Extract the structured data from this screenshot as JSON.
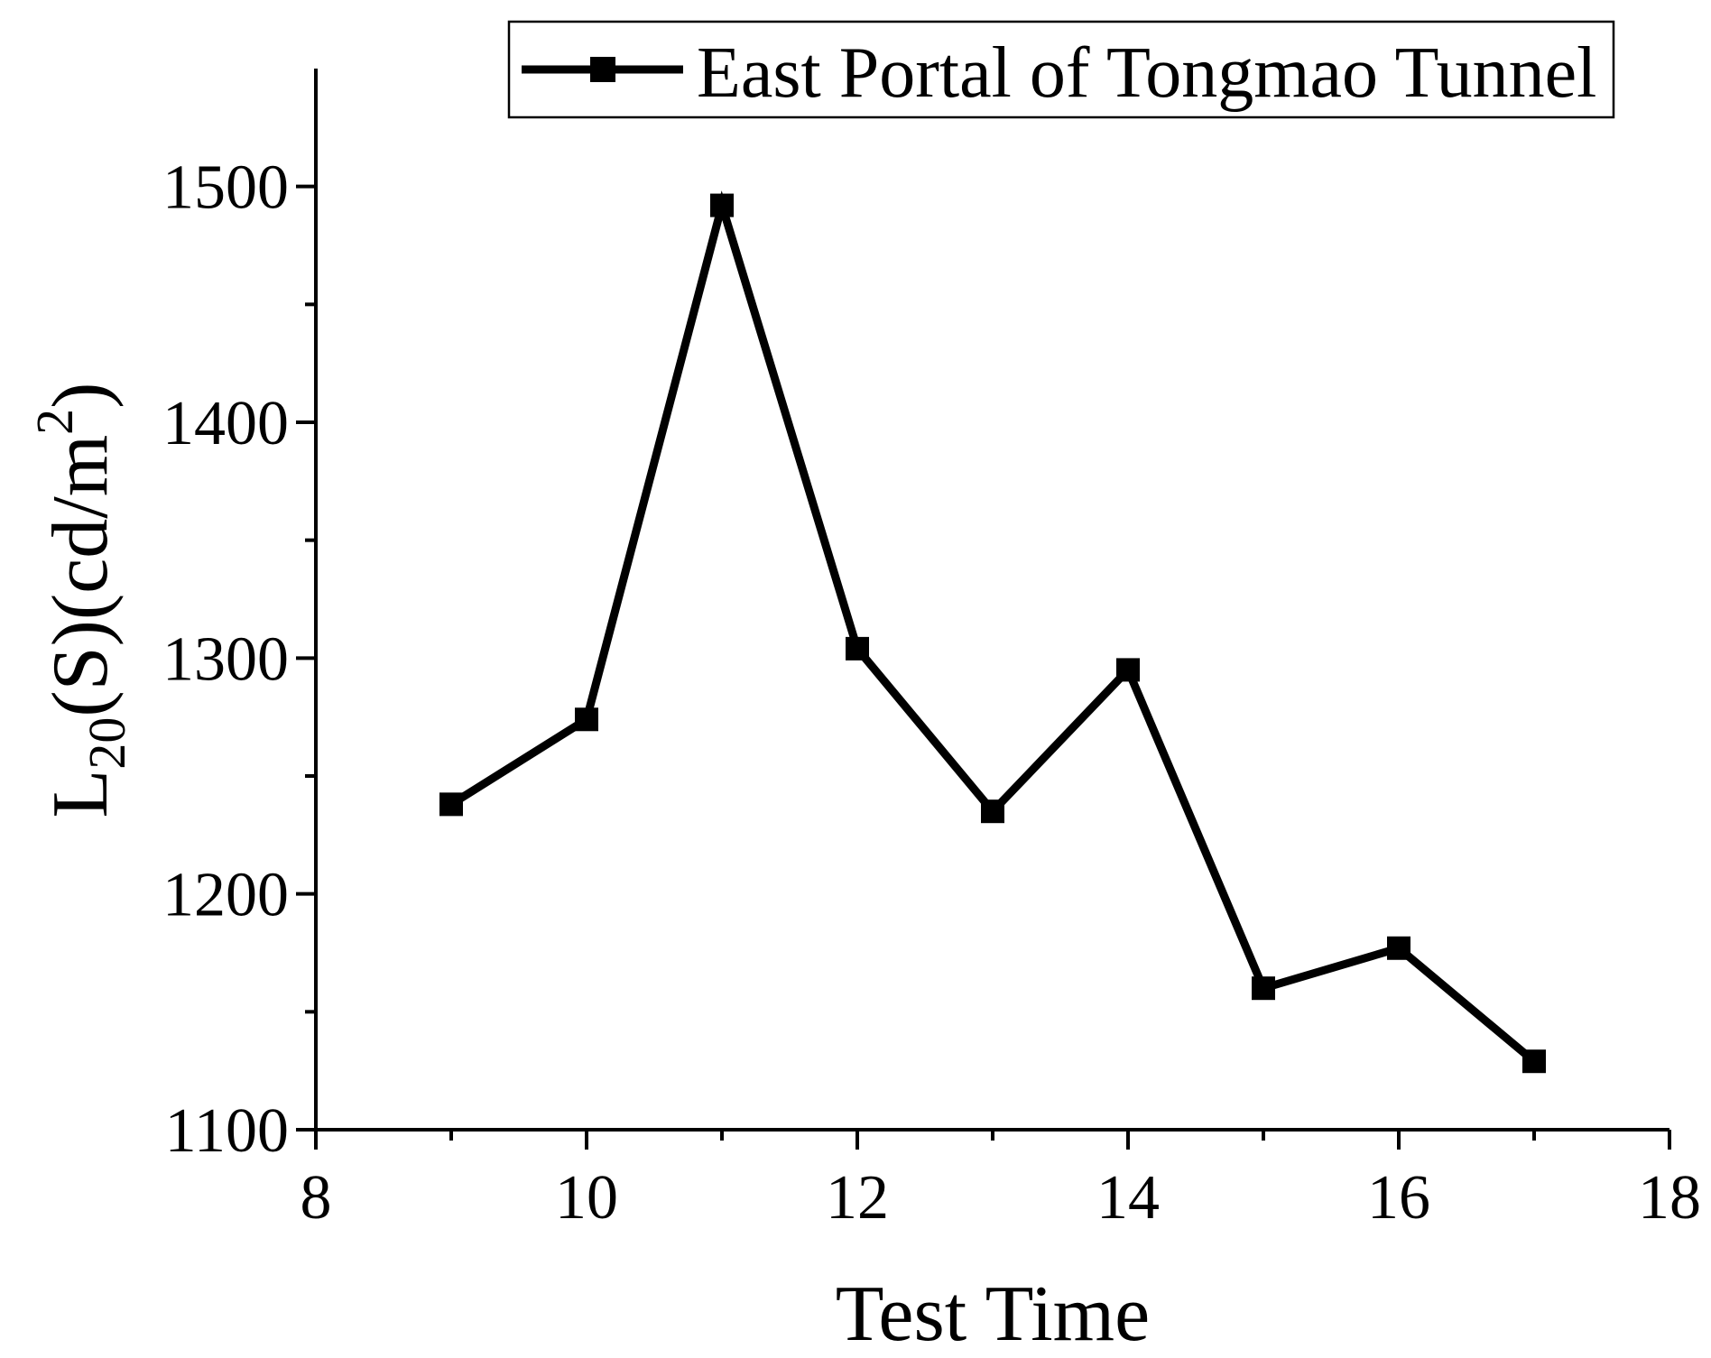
{
  "chart_data": {
    "type": "line",
    "title": "",
    "xlabel": "Test Time",
    "ylabel": {
      "base": "L",
      "subscript": "20",
      "middle": "(S)(cd/m",
      "superscript": "2",
      "end": ")"
    },
    "xlim": [
      8,
      18
    ],
    "ylim": [
      1100,
      1550
    ],
    "x_ticks": [
      8,
      10,
      12,
      14,
      16,
      18
    ],
    "x_minor_ticks": [
      9,
      11,
      13,
      15,
      17
    ],
    "y_ticks": [
      1100,
      1200,
      1300,
      1400,
      1500
    ],
    "y_minor_ticks": [
      1150,
      1250,
      1350,
      1450
    ],
    "grid": false,
    "legend_position": "top-right",
    "series": [
      {
        "name": "East Portal of Tongmao Tunnel",
        "color": "#000000",
        "marker": "square",
        "x": [
          9,
          10,
          11,
          12,
          13,
          14,
          15,
          16,
          17
        ],
        "y": [
          1238,
          1274,
          1492,
          1304,
          1235,
          1295,
          1160,
          1177,
          1129
        ]
      }
    ]
  }
}
